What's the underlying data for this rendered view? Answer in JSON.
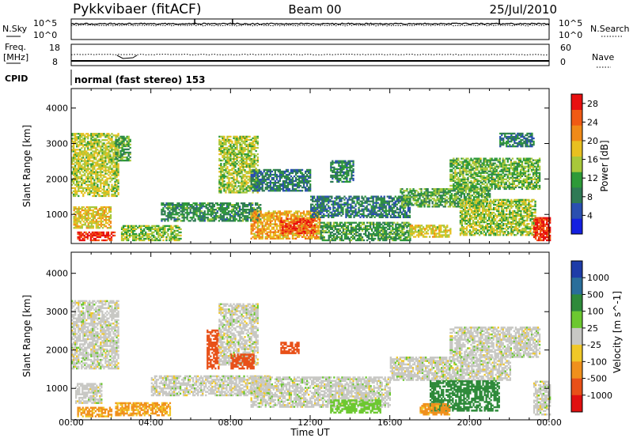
{
  "header": {
    "station": "Pykkvibaer (fitACF)",
    "beam": "Beam 00",
    "date": "25/Jul/2010"
  },
  "noise_panel": {
    "left_label": "N.Sky",
    "right_label": "N.Search",
    "top_tick": "10^5",
    "bottom_tick": "10^0"
  },
  "freq_panel": {
    "left_label_1": "Freq.",
    "left_label_2": "[MHz]",
    "right_label": "Nave",
    "left_ticks": [
      "18",
      "8"
    ],
    "right_ticks": [
      "60",
      "0"
    ]
  },
  "cpid": {
    "label": "CPID",
    "value": "normal (fast stereo) 153"
  },
  "x_axis": {
    "label": "Time UT",
    "ticks": [
      "00:00",
      "04:00",
      "08:00",
      "12:00",
      "16:00",
      "20:00",
      "00:00"
    ],
    "range_hours": [
      0,
      24
    ]
  },
  "chart_data": [
    {
      "type": "heatmap",
      "title": "",
      "xlabel": "Time UT",
      "ylabel": "Slant Range [km]",
      "xlim": [
        0,
        24
      ],
      "ylim": [
        180,
        4550
      ],
      "yticks": [
        1000,
        2000,
        3000,
        4000
      ],
      "colorbar": {
        "label": "Power [dB]",
        "range": [
          0,
          30
        ],
        "ticks": [
          "4",
          "8",
          "12",
          "16",
          "20",
          "24",
          "28"
        ],
        "colors": [
          "#1420e0",
          "#2a4fb0",
          "#2f7a55",
          "#2e9a38",
          "#a8c83a",
          "#e8c020",
          "#f08a18",
          "#f05a14",
          "#e81010"
        ]
      },
      "regions": [
        {
          "t0": 0.0,
          "t1": 2.4,
          "r0": 1500,
          "r1": 3300,
          "level": 16
        },
        {
          "t0": 0.1,
          "t1": 2.0,
          "r0": 600,
          "r1": 1200,
          "level": 18
        },
        {
          "t0": 0.3,
          "t1": 2.2,
          "r0": 250,
          "r1": 520,
          "level": 27
        },
        {
          "t0": 2.2,
          "t1": 3.0,
          "r0": 2500,
          "r1": 3200,
          "level": 12
        },
        {
          "t0": 2.5,
          "t1": 5.5,
          "r0": 250,
          "r1": 700,
          "level": 14
        },
        {
          "t0": 4.5,
          "t1": 9.5,
          "r0": 800,
          "r1": 1300,
          "level": 10
        },
        {
          "t0": 7.4,
          "t1": 9.4,
          "r0": 1600,
          "r1": 3200,
          "level": 15
        },
        {
          "t0": 9.0,
          "t1": 12.0,
          "r0": 1650,
          "r1": 2250,
          "level": 8
        },
        {
          "t0": 9.0,
          "t1": 12.5,
          "r0": 300,
          "r1": 1100,
          "level": 20
        },
        {
          "t0": 10.5,
          "t1": 12.2,
          "r0": 450,
          "r1": 900,
          "level": 26
        },
        {
          "t0": 12.0,
          "t1": 17.0,
          "r0": 900,
          "r1": 1500,
          "level": 8
        },
        {
          "t0": 12.5,
          "t1": 17.0,
          "r0": 250,
          "r1": 750,
          "level": 11
        },
        {
          "t0": 13.0,
          "t1": 14.2,
          "r0": 1900,
          "r1": 2500,
          "level": 9
        },
        {
          "t0": 16.5,
          "t1": 21.0,
          "r0": 1200,
          "r1": 1700,
          "level": 12
        },
        {
          "t0": 17.0,
          "t1": 19.0,
          "r0": 350,
          "r1": 700,
          "level": 17
        },
        {
          "t0": 19.0,
          "t1": 23.5,
          "r0": 1700,
          "r1": 2600,
          "level": 13
        },
        {
          "t0": 19.5,
          "t1": 23.3,
          "r0": 400,
          "r1": 1400,
          "level": 15
        },
        {
          "t0": 21.5,
          "t1": 23.2,
          "r0": 2900,
          "r1": 3300,
          "level": 8
        },
        {
          "t0": 23.2,
          "t1": 24.0,
          "r0": 250,
          "r1": 900,
          "level": 27
        }
      ]
    },
    {
      "type": "heatmap",
      "title": "",
      "xlabel": "Time UT",
      "ylabel": "Slant Range [km]",
      "xlim": [
        0,
        24
      ],
      "ylim": [
        180,
        4550
      ],
      "yticks": [
        1000,
        2000,
        3000,
        4000
      ],
      "colorbar": {
        "label": "Velocity [m s^-1]",
        "ticks": [
          "1000",
          "500",
          "100",
          "25",
          "-25",
          "-100",
          "-500",
          "-1000"
        ],
        "colors": [
          "#1e3ca8",
          "#2a6e9a",
          "#2e8a3a",
          "#6cc830",
          "#c8c8c4",
          "#f0c828",
          "#f0901c",
          "#e85018",
          "#e01010"
        ]
      },
      "regions": [
        {
          "t0": 0.0,
          "t1": 2.4,
          "r0": 1500,
          "r1": 3300,
          "level": 0
        },
        {
          "t0": 0.2,
          "t1": 1.5,
          "r0": 600,
          "r1": 1100,
          "level": 0
        },
        {
          "t0": 0.3,
          "t1": 2.0,
          "r0": 250,
          "r1": 520,
          "level": -120
        },
        {
          "t0": 2.2,
          "t1": 5.0,
          "r0": 280,
          "r1": 600,
          "level": -110
        },
        {
          "t0": 4.0,
          "t1": 10.0,
          "r0": 800,
          "r1": 1300,
          "level": 0
        },
        {
          "t0": 6.8,
          "t1": 7.4,
          "r0": 1500,
          "r1": 2500,
          "level": -600
        },
        {
          "t0": 7.4,
          "t1": 9.4,
          "r0": 1600,
          "r1": 3200,
          "level": 0
        },
        {
          "t0": 8.0,
          "t1": 9.2,
          "r0": 1500,
          "r1": 1900,
          "level": -700
        },
        {
          "t0": 10.5,
          "t1": 11.4,
          "r0": 1900,
          "r1": 2200,
          "level": -700
        },
        {
          "t0": 9.0,
          "t1": 16.0,
          "r0": 500,
          "r1": 1300,
          "level": 0
        },
        {
          "t0": 13.0,
          "t1": 15.5,
          "r0": 350,
          "r1": 700,
          "level": 60
        },
        {
          "t0": 16.0,
          "t1": 22.0,
          "r0": 1200,
          "r1": 1800,
          "level": 0
        },
        {
          "t0": 18.0,
          "t1": 21.5,
          "r0": 400,
          "r1": 1200,
          "level": 150
        },
        {
          "t0": 19.0,
          "t1": 23.5,
          "r0": 1800,
          "r1": 2600,
          "level": 0
        },
        {
          "t0": 17.5,
          "t1": 19.0,
          "r0": 300,
          "r1": 600,
          "level": -120
        },
        {
          "t0": 23.2,
          "t1": 24.0,
          "r0": 300,
          "r1": 1200,
          "level": 0
        }
      ]
    }
  ]
}
